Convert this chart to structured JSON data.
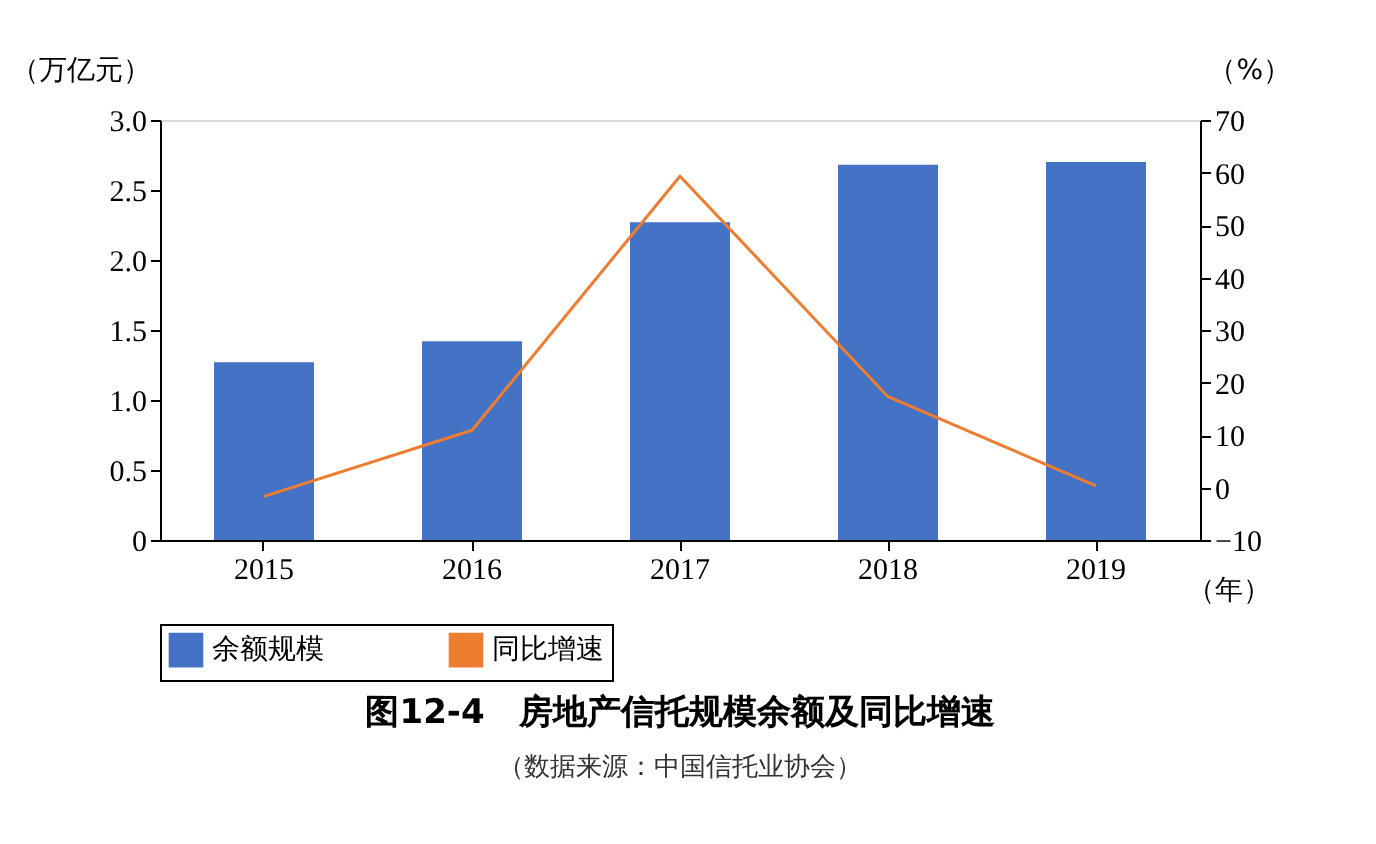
{
  "chart_data": {
    "type": "bar",
    "title": "图12-4　房地产信托规模余额及同比增速",
    "annotations": [
      "（数据来源：中国信托业协会）"
    ],
    "xlabel": "（年）",
    "ylabel": "（万亿元）",
    "y2label": "（%）",
    "categories": [
      "2015",
      "2016",
      "2017",
      "2018",
      "2019"
    ],
    "series": [
      {
        "name": "余额规模",
        "color": "#4472c4",
        "values": [
          1.27,
          1.42,
          2.27,
          2.68,
          2.7
        ]
      },
      {
        "name": "同比增速",
        "type": "line",
        "axis": "y2",
        "color": "#ed7d31",
        "values": [
          -1.7,
          10.9,
          59.3,
          17.3,
          0.3
        ]
      }
    ],
    "ylim": [
      0,
      3.0
    ],
    "yticks": [
      {
        "value": 0,
        "label": "0"
      },
      {
        "value": 0.5,
        "label": "0.5"
      },
      {
        "value": 1.0,
        "label": "1.0"
      },
      {
        "value": 1.5,
        "label": "1.5"
      },
      {
        "value": 2.0,
        "label": "2.0"
      },
      {
        "value": 2.5,
        "label": "2.5"
      },
      {
        "value": 3.0,
        "label": "3.0"
      }
    ],
    "y2lim": [
      -10,
      70
    ],
    "y2ticks": [
      -10,
      0,
      10,
      20,
      30,
      40,
      50,
      60,
      70
    ],
    "grid": false,
    "legend": "bottom"
  }
}
